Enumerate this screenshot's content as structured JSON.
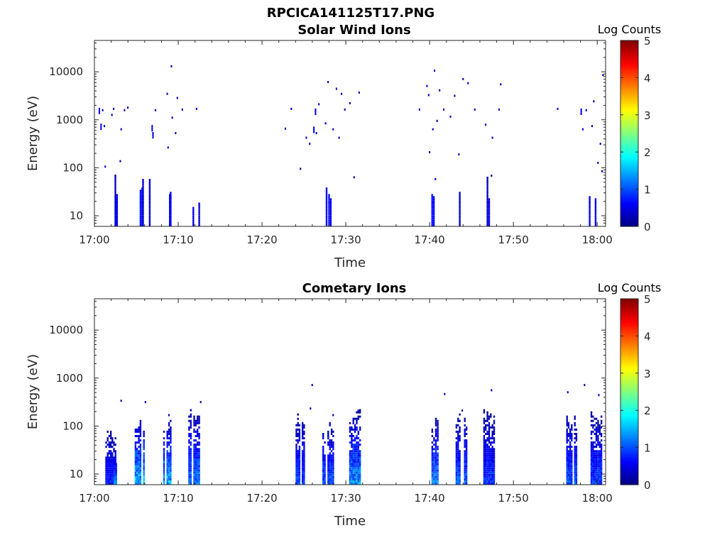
{
  "figure_title": "RPCICA141125T17.PNG",
  "chart_data": [
    {
      "type": "heatmap",
      "title": "Solar Wind Ions",
      "xlabel": "Time",
      "ylabel": "Energy (eV)",
      "xticks": [
        "17:00",
        "17:10",
        "17:20",
        "17:30",
        "17:40",
        "17:50",
        "18:00"
      ],
      "xlim_minutes_after_1700": [
        0,
        61
      ],
      "yscale": "log",
      "yticks": [
        "10",
        "100",
        "1000",
        "10000"
      ],
      "ylim": [
        6,
        45000
      ],
      "colorbar": {
        "label": "Log Counts",
        "ticks": [
          "0",
          "1",
          "2",
          "3",
          "4",
          "5"
        ],
        "range": [
          0,
          5
        ],
        "colormap": "jet"
      },
      "cells": [
        [
          0.5,
          1600,
          0.6
        ],
        [
          0.7,
          750,
          0.5
        ],
        [
          0.9,
          1500,
          0.4
        ],
        [
          1.1,
          700,
          0.3
        ],
        [
          1.2,
          100,
          0.4
        ],
        [
          2.2,
          1600,
          0.3
        ],
        [
          2.0,
          1200,
          0.4
        ],
        [
          2.4,
          38,
          0.3
        ],
        [
          2.6,
          15,
          0.6
        ],
        [
          2.5,
          12,
          0.5
        ],
        [
          3.0,
          130,
          0.3
        ],
        [
          3.1,
          600,
          0.3
        ],
        [
          3.5,
          1500,
          0.3
        ],
        [
          3.9,
          1700,
          0.3
        ],
        [
          5.4,
          18,
          0.7
        ],
        [
          5.6,
          20,
          0.7
        ],
        [
          5.7,
          30,
          0.4
        ],
        [
          6.5,
          30,
          0.4
        ],
        [
          6.8,
          700,
          0.6
        ],
        [
          6.9,
          500,
          0.5
        ],
        [
          7.2,
          1500,
          0.4
        ],
        [
          8.6,
          3300,
          0.3
        ],
        [
          8.7,
          250,
          0.3
        ],
        [
          8.9,
          15,
          0.6
        ],
        [
          9.0,
          16,
          0.5
        ],
        [
          9.1,
          12300,
          0.3
        ],
        [
          9.2,
          1050,
          0.3
        ],
        [
          9.6,
          500,
          0.3
        ],
        [
          9.8,
          2700,
          0.3
        ],
        [
          10.4,
          1550,
          0.3
        ],
        [
          11.7,
          8,
          0.5
        ],
        [
          12.1,
          1600,
          0.3
        ],
        [
          12.4,
          10,
          0.4
        ],
        [
          22.7,
          620,
          0.3
        ],
        [
          23.4,
          1600,
          0.3
        ],
        [
          24.5,
          90,
          0.3
        ],
        [
          25.2,
          400,
          0.3
        ],
        [
          25.6,
          300,
          0.3
        ],
        [
          26.1,
          650,
          0.5
        ],
        [
          26.3,
          1550,
          0.5
        ],
        [
          26.4,
          500,
          0.4
        ],
        [
          26.7,
          2000,
          0.3
        ],
        [
          27.5,
          800,
          0.3
        ],
        [
          27.6,
          20,
          0.6
        ],
        [
          27.9,
          15,
          0.7
        ],
        [
          28.1,
          12,
          0.5
        ],
        [
          27.8,
          5800,
          0.3
        ],
        [
          28.4,
          600,
          0.3
        ],
        [
          28.8,
          4200,
          0.3
        ],
        [
          29.1,
          400,
          0.3
        ],
        [
          29.4,
          3300,
          0.3
        ],
        [
          29.8,
          1550,
          0.3
        ],
        [
          30.4,
          2100,
          0.3
        ],
        [
          30.9,
          60,
          0.3
        ],
        [
          31.5,
          3500,
          0.3
        ],
        [
          38.7,
          1550,
          0.4
        ],
        [
          39.6,
          4800,
          0.3
        ],
        [
          39.8,
          3100,
          0.3
        ],
        [
          39.9,
          200,
          0.3
        ],
        [
          40.2,
          15,
          0.7
        ],
        [
          40.4,
          14,
          0.6
        ],
        [
          40.6,
          55,
          0.3
        ],
        [
          40.3,
          600,
          0.4
        ],
        [
          40.5,
          10000,
          0.3
        ],
        [
          40.8,
          900,
          0.3
        ],
        [
          41.1,
          3900,
          0.3
        ],
        [
          41.6,
          1550,
          0.4
        ],
        [
          42.4,
          1100,
          0.3
        ],
        [
          42.9,
          3000,
          0.3
        ],
        [
          43.4,
          180,
          0.3
        ],
        [
          43.5,
          16,
          0.3
        ],
        [
          43.9,
          6700,
          0.3
        ],
        [
          44.5,
          5500,
          0.3
        ],
        [
          45.3,
          1550,
          0.3
        ],
        [
          46.6,
          750,
          0.3
        ],
        [
          46.8,
          35,
          0.3
        ],
        [
          47.0,
          12,
          0.6
        ],
        [
          47.3,
          65,
          0.2
        ],
        [
          47.4,
          400,
          0.3
        ],
        [
          48.2,
          1550,
          0.3
        ],
        [
          48.4,
          5200,
          0.3
        ],
        [
          55.2,
          1600,
          0.3
        ],
        [
          58.0,
          1550,
          0.5
        ],
        [
          58.2,
          600,
          0.4
        ],
        [
          58.6,
          1500,
          0.4
        ],
        [
          59.0,
          13,
          0.5
        ],
        [
          59.3,
          700,
          0.4
        ],
        [
          59.5,
          2300,
          0.3
        ],
        [
          59.7,
          12,
          0.5
        ],
        [
          60.0,
          120,
          0.3
        ],
        [
          60.3,
          300,
          0.3
        ],
        [
          60.5,
          80,
          0.3
        ],
        [
          60.6,
          8100,
          0.3
        ]
      ]
    },
    {
      "type": "heatmap",
      "title": "Cometary Ions",
      "xlabel": "Time",
      "ylabel": "Energy (eV)",
      "xticks": [
        "17:00",
        "17:10",
        "17:20",
        "17:30",
        "17:40",
        "17:50",
        "18:00"
      ],
      "xlim_minutes_after_1700": [
        0,
        61
      ],
      "yscale": "log",
      "yticks": [
        "10",
        "100",
        "1000",
        "10000"
      ],
      "ylim": [
        6,
        45000
      ],
      "colorbar": {
        "label": "Log Counts",
        "ticks": [
          "0",
          "1",
          "2",
          "3",
          "4",
          "5"
        ],
        "range": [
          0,
          5
        ],
        "colormap": "jet"
      },
      "bursts": [
        {
          "t0": 1.3,
          "t1": 2.6,
          "emax": 90,
          "peak": 1.0
        },
        {
          "t0": 2.3,
          "t1": 2.6,
          "emax": 30,
          "peak": 1.6
        },
        {
          "t0": 4.8,
          "t1": 6.2,
          "emax": 160,
          "peak": 1.9
        },
        {
          "t0": 8.0,
          "t1": 9.2,
          "emax": 160,
          "peak": 1.8
        },
        {
          "t0": 11.2,
          "t1": 12.6,
          "emax": 260,
          "peak": 1.5
        },
        {
          "t0": 24.0,
          "t1": 25.3,
          "emax": 190,
          "peak": 1.2
        },
        {
          "t0": 27.2,
          "t1": 28.6,
          "emax": 150,
          "peak": 1.3
        },
        {
          "t0": 30.4,
          "t1": 31.8,
          "emax": 210,
          "peak": 1.7
        },
        {
          "t0": 40.0,
          "t1": 41.3,
          "emax": 170,
          "peak": 1.6
        },
        {
          "t0": 43.1,
          "t1": 44.5,
          "emax": 200,
          "peak": 1.3
        },
        {
          "t0": 46.4,
          "t1": 47.8,
          "emax": 220,
          "peak": 1.1
        },
        {
          "t0": 56.3,
          "t1": 57.6,
          "emax": 200,
          "peak": 1.3
        },
        {
          "t0": 59.2,
          "t1": 60.6,
          "emax": 200,
          "peak": 1.2
        }
      ],
      "cells": [
        [
          3.1,
          320,
          0.3
        ],
        [
          6.0,
          300,
          0.3
        ],
        [
          8.8,
          160,
          0.3
        ],
        [
          12.6,
          300,
          0.3
        ],
        [
          25.9,
          680,
          0.3
        ],
        [
          25.7,
          220,
          0.3
        ],
        [
          28.4,
          160,
          0.3
        ],
        [
          31.4,
          200,
          0.3
        ],
        [
          41.7,
          440,
          0.3
        ],
        [
          43.8,
          200,
          0.3
        ],
        [
          47.3,
          530,
          0.3
        ],
        [
          56.4,
          480,
          0.3
        ],
        [
          58.4,
          680,
          0.3
        ],
        [
          60.1,
          420,
          0.3
        ]
      ]
    }
  ]
}
